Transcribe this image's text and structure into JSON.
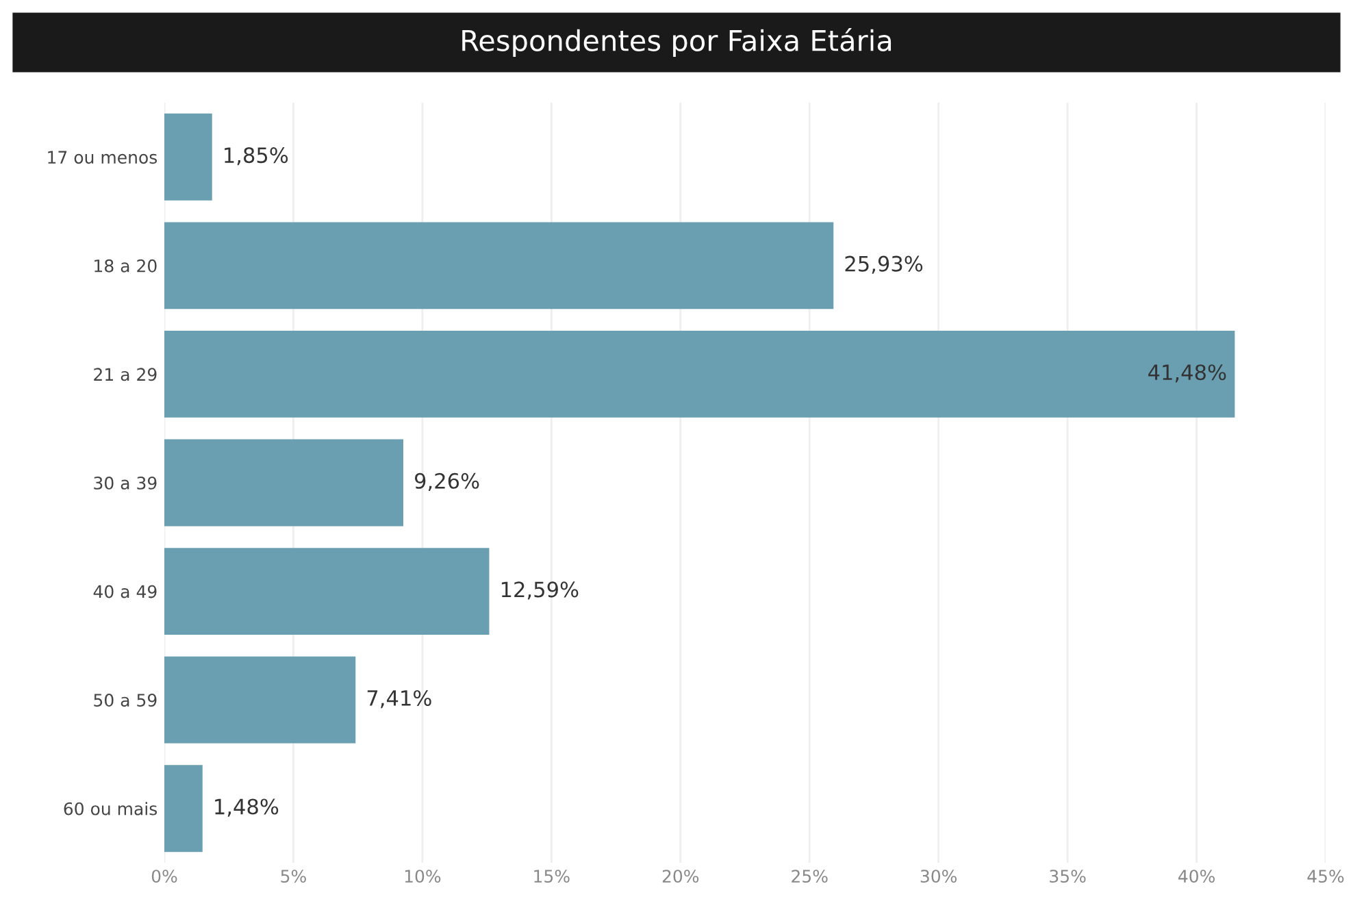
{
  "chart_data": {
    "type": "bar",
    "orientation": "horizontal",
    "title": "Respondentes por Faixa Etária",
    "categories": [
      "17 ou menos",
      "18 a 20",
      "21 a 29",
      "30 a 39",
      "40 a 49",
      "50 a 59",
      "60 ou mais"
    ],
    "values": [
      1.85,
      25.93,
      41.48,
      9.26,
      12.59,
      7.41,
      1.48
    ],
    "value_labels": [
      "1,85%",
      "25,93%",
      "41,48%",
      "9,26%",
      "12,59%",
      "7,41%",
      "1,48%"
    ],
    "color": "#6a9fb1",
    "xlim": [
      0,
      45
    ],
    "xticks": [
      {
        "value": 0,
        "label": "0%"
      },
      {
        "value": 5,
        "label": "5%"
      },
      {
        "value": 10,
        "label": "10%"
      },
      {
        "value": 15,
        "label": "15%"
      },
      {
        "value": 20,
        "label": "20%"
      },
      {
        "value": 25,
        "label": "25%"
      },
      {
        "value": 30,
        "label": "30%"
      },
      {
        "value": 35,
        "label": "35%"
      },
      {
        "value": 40,
        "label": "40%"
      },
      {
        "value": 45,
        "label": "45%"
      }
    ],
    "grid": "x",
    "legend": false
  }
}
